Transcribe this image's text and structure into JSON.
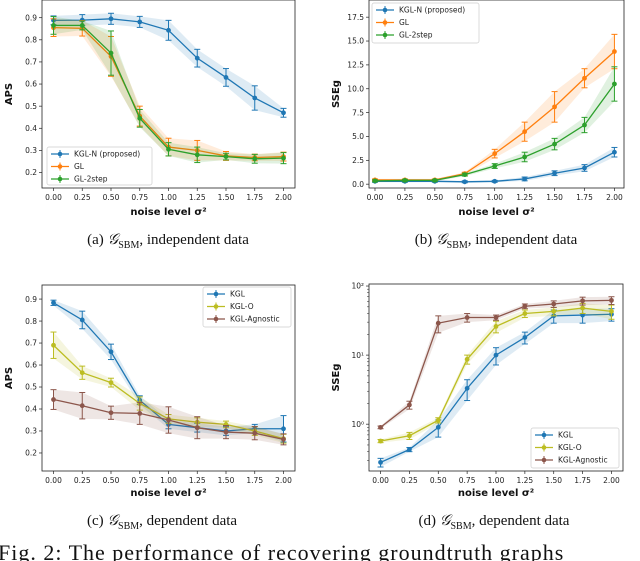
{
  "figure_caption": "Fig. 2: The performance of recovering groundtruth graphs",
  "chart_data": [
    {
      "type": "line",
      "panel": "a",
      "yscale": "linear",
      "caption": {
        "label": "(a)",
        "symbol": "𝒢",
        "sub": "SBM",
        "text": ", independent data"
      },
      "xlabel": "noise level σ²",
      "ylabel": "APS",
      "x": [
        0,
        0.25,
        0.5,
        0.75,
        1.0,
        1.25,
        1.5,
        1.75,
        2.0
      ],
      "xticks": [
        "0.00",
        "0.25",
        "0.50",
        "0.75",
        "1.00",
        "1.25",
        "1.50",
        "1.75",
        "2.00"
      ],
      "xlim": [
        -0.1,
        2.1
      ],
      "ylim": [
        0.13,
        0.98
      ],
      "yticks": [
        0.2,
        0.3,
        0.4,
        0.5,
        0.6,
        0.7,
        0.8,
        0.9
      ],
      "ytick_labels": [
        "0.2",
        "0.3",
        "0.4",
        "0.5",
        "0.6",
        "0.7",
        "0.8",
        "0.9"
      ],
      "legend": "lower-left",
      "grid": false,
      "series": [
        {
          "name": "KGL-N (proposed)",
          "color": "#1f77b4",
          "values": [
            0.888,
            0.889,
            0.895,
            0.881,
            0.843,
            0.717,
            0.63,
            0.537,
            0.47
          ],
          "errors": [
            0.02,
            0.025,
            0.025,
            0.025,
            0.045,
            0.04,
            0.04,
            0.055,
            0.02
          ]
        },
        {
          "name": "GL",
          "color": "#ff7f0e",
          "values": [
            0.855,
            0.852,
            0.725,
            0.455,
            0.315,
            0.3,
            0.275,
            0.268,
            0.272
          ],
          "errors": [
            0.04,
            0.035,
            0.09,
            0.045,
            0.04,
            0.045,
            0.02,
            0.015,
            0.02
          ]
        },
        {
          "name": "GL-2step",
          "color": "#2ca02c",
          "values": [
            0.865,
            0.865,
            0.74,
            0.445,
            0.305,
            0.28,
            0.272,
            0.262,
            0.265
          ],
          "errors": [
            0.04,
            0.02,
            0.1,
            0.04,
            0.03,
            0.035,
            0.015,
            0.02,
            0.025
          ]
        }
      ]
    },
    {
      "type": "line",
      "panel": "b",
      "yscale": "linear",
      "caption": {
        "label": "(b)",
        "symbol": "𝒢",
        "sub": "SBM",
        "text": ", independent data"
      },
      "xlabel": "noise level σ²",
      "ylabel": "SSEg",
      "x": [
        0,
        0.25,
        0.5,
        0.75,
        1.0,
        1.25,
        1.5,
        1.75,
        2.0
      ],
      "xticks": [
        "0.00",
        "0.25",
        "0.50",
        "0.75",
        "1.00",
        "1.25",
        "1.50",
        "1.75",
        "2.00"
      ],
      "xlim": [
        -0.05,
        2.08
      ],
      "ylim": [
        -0.4,
        19.3
      ],
      "yticks": [
        0,
        2.5,
        5,
        7.5,
        10,
        12.5,
        15,
        17.5
      ],
      "ytick_labels": [
        "0.0",
        "2.5",
        "5.0",
        "7.5",
        "10.0",
        "12.5",
        "15.0",
        "17.5"
      ],
      "legend": "upper-left",
      "grid": false,
      "series": [
        {
          "name": "KGL-N (proposed)",
          "color": "#1f77b4",
          "values": [
            0.3,
            0.3,
            0.3,
            0.25,
            0.3,
            0.55,
            1.15,
            1.7,
            3.35
          ],
          "errors": [
            0.1,
            0.1,
            0.1,
            0.1,
            0.1,
            0.2,
            0.25,
            0.35,
            0.5
          ]
        },
        {
          "name": "GL",
          "color": "#ff7f0e",
          "values": [
            0.45,
            0.45,
            0.45,
            1.1,
            3.2,
            5.5,
            8.1,
            11.1,
            13.9
          ],
          "errors": [
            0.1,
            0.1,
            0.1,
            0.15,
            0.45,
            1.0,
            1.6,
            1.0,
            1.8
          ]
        },
        {
          "name": "GL-2step",
          "color": "#2ca02c",
          "values": [
            0.35,
            0.4,
            0.4,
            1.0,
            1.9,
            2.85,
            4.2,
            6.2,
            10.5
          ],
          "errors": [
            0.1,
            0.1,
            0.1,
            0.15,
            0.25,
            0.5,
            0.6,
            0.8,
            1.8
          ]
        }
      ]
    },
    {
      "type": "line",
      "panel": "c",
      "yscale": "linear",
      "caption": {
        "label": "(c)",
        "symbol": "𝒢",
        "sub": "SBM",
        "text": ", dependent data"
      },
      "xlabel": "noise level σ²",
      "ylabel": "APS",
      "x": [
        0,
        0.25,
        0.5,
        0.75,
        1.0,
        1.25,
        1.5,
        1.75,
        2.0
      ],
      "xticks": [
        "0.00",
        "0.25",
        "0.50",
        "0.75",
        "1.00",
        "1.25",
        "1.50",
        "1.75",
        "2.00"
      ],
      "xlim": [
        -0.1,
        2.1
      ],
      "ylim": [
        0.118,
        0.964
      ],
      "yticks": [
        0.2,
        0.3,
        0.4,
        0.5,
        0.6,
        0.7,
        0.8,
        0.9
      ],
      "ytick_labels": [
        "0.2",
        "0.3",
        "0.4",
        "0.5",
        "0.6",
        "0.7",
        "0.8",
        "0.9"
      ],
      "legend": "upper-right",
      "grid": false,
      "series": [
        {
          "name": "KGL",
          "color": "#1f77b4",
          "values": [
            0.883,
            0.805,
            0.66,
            0.44,
            0.33,
            0.315,
            0.3,
            0.31,
            0.31
          ],
          "errors": [
            0.012,
            0.04,
            0.035,
            0.02,
            0.02,
            0.02,
            0.02,
            0.02,
            0.06
          ]
        },
        {
          "name": "KGL-O",
          "color": "#bcbd22",
          "values": [
            0.69,
            0.565,
            0.52,
            0.425,
            0.355,
            0.34,
            0.33,
            0.3,
            0.265
          ],
          "errors": [
            0.06,
            0.03,
            0.02,
            0.03,
            0.02,
            0.02,
            0.015,
            0.02,
            0.02
          ]
        },
        {
          "name": "KGL-Agnostic",
          "color": "#8c564b",
          "values": [
            0.443,
            0.415,
            0.383,
            0.38,
            0.35,
            0.315,
            0.295,
            0.29,
            0.262
          ],
          "errors": [
            0.045,
            0.06,
            0.03,
            0.05,
            0.06,
            0.05,
            0.03,
            0.03,
            0.025
          ]
        }
      ]
    },
    {
      "type": "line",
      "panel": "d",
      "yscale": "log",
      "caption": {
        "label": "(d)",
        "symbol": "𝒢",
        "sub": "SBM",
        "text": ", dependent data"
      },
      "xlabel": "noise level σ²",
      "ylabel": "SSEg",
      "x": [
        0,
        0.25,
        0.5,
        0.75,
        1.0,
        1.25,
        1.5,
        1.75,
        2.0
      ],
      "xticks": [
        "0.00",
        "0.25",
        "0.50",
        "0.75",
        "1.00",
        "1.25",
        "1.50",
        "1.75",
        "2.00"
      ],
      "xlim": [
        -0.1,
        2.1
      ],
      "ylim": [
        0.21,
        107
      ],
      "yticks": [
        1,
        10,
        100
      ],
      "ytick_labels": [
        "10⁰",
        "10¹",
        "10²"
      ],
      "legend": "lower-right",
      "grid": false,
      "series": [
        {
          "name": "KGL",
          "color": "#1f77b4",
          "values": [
            0.28,
            0.43,
            0.9,
            3.3,
            10,
            18,
            37,
            38,
            39
          ],
          "errors": [
            0.04,
            0.03,
            0.25,
            1.1,
            2.8,
            3.5,
            8,
            9,
            8
          ]
        },
        {
          "name": "KGL-O",
          "color": "#bcbd22",
          "values": [
            0.57,
            0.68,
            1.14,
            8.7,
            26,
            40,
            43,
            48,
            43
          ],
          "errors": [
            0.03,
            0.08,
            0.1,
            1.3,
            5,
            5,
            6,
            8,
            10
          ]
        },
        {
          "name": "KGL-Agnostic",
          "color": "#8c564b",
          "values": [
            0.9,
            1.9,
            29,
            35,
            35,
            51,
            55,
            61,
            62
          ],
          "errors": [
            0.04,
            0.25,
            8,
            5,
            3,
            4,
            6,
            8,
            8
          ]
        }
      ]
    }
  ]
}
